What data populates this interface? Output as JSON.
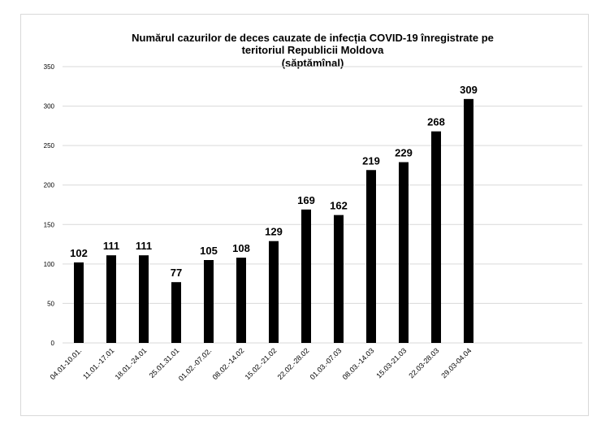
{
  "chart_data": {
    "type": "bar",
    "title_lines": [
      "Numărul cazurilor de deces cauzate de infecția  COVID-19 înregistrate pe",
      "teritoriul Republicii Moldova",
      "(săptămînal)"
    ],
    "categories": [
      "04.01-10.01.",
      "11.01.-17.01",
      "18.01.-24.01",
      "25.01.31.01",
      "01.02.-07.02.",
      "08.02.-14.02",
      "15.02.-21.02",
      "22.02.-28.02",
      "01.03.-07.03",
      "08.03.-14.03",
      "15.03-21.03",
      "22.03-28.03",
      "29.03-04.04",
      "",
      "",
      ""
    ],
    "values": [
      102,
      111,
      111,
      77,
      105,
      108,
      129,
      169,
      162,
      219,
      229,
      268,
      309,
      null,
      null,
      null
    ],
    "ylim": [
      0,
      350
    ],
    "yticks": [
      0,
      50,
      100,
      150,
      200,
      250,
      300,
      350
    ],
    "grid": true,
    "bar_color": "#000000",
    "grid_color": "#d9d9d9"
  }
}
